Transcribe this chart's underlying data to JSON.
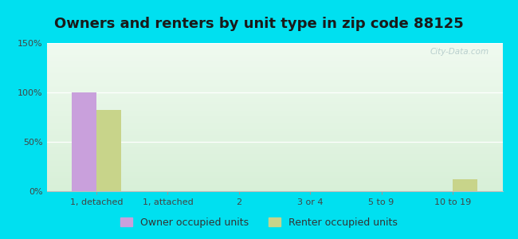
{
  "title": "Owners and renters by unit type in zip code 88125",
  "categories": [
    "1, detached",
    "1, attached",
    "2",
    "3 or 4",
    "5 to 9",
    "10 to 19"
  ],
  "owner_values": [
    100,
    0,
    0,
    0,
    0,
    0
  ],
  "renter_values": [
    82,
    0,
    0,
    0,
    0,
    12
  ],
  "owner_color": "#c9a0dc",
  "renter_color": "#c8d48a",
  "background_outer": "#00e0f0",
  "ylim": [
    0,
    150
  ],
  "yticks": [
    0,
    50,
    100,
    150
  ],
  "ytick_labels": [
    "0%",
    "50%",
    "100%",
    "150%"
  ],
  "bar_width": 0.35,
  "legend_owner": "Owner occupied units",
  "legend_renter": "Renter occupied units",
  "watermark": "City-Data.com",
  "title_fontsize": 13,
  "tick_fontsize": 8,
  "legend_fontsize": 9
}
